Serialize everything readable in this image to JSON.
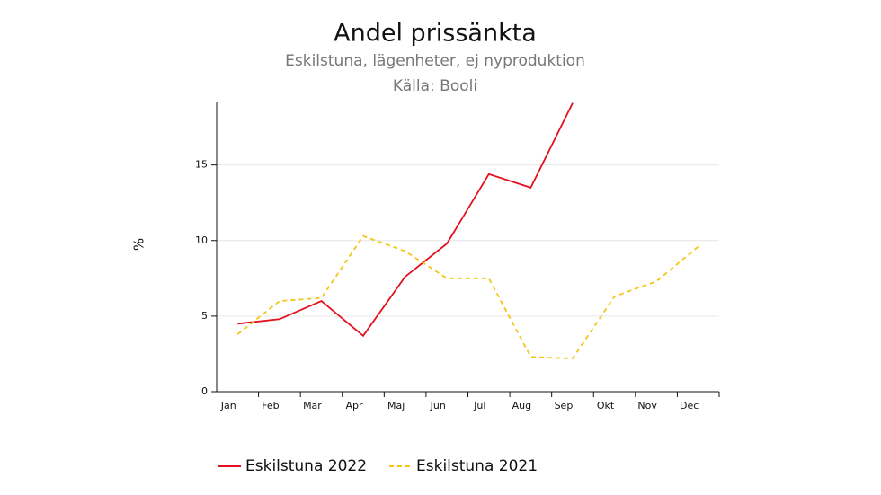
{
  "chart_data": {
    "type": "line",
    "title": "Andel prissänkta",
    "subtitle": "Eskilstuna, lägenheter, ej nyproduktion",
    "source": "Källa: Booli",
    "y_label": "%",
    "categories": [
      "Jan",
      "Feb",
      "Mar",
      "Apr",
      "Maj",
      "Jun",
      "Jul",
      "Aug",
      "Sep",
      "Okt",
      "Nov",
      "Dec"
    ],
    "series": [
      {
        "name": "Eskilstuna 2022",
        "color": "#e3101e",
        "dash": false,
        "values": [
          4.5,
          4.8,
          6.0,
          3.7,
          7.6,
          9.8,
          14.4,
          13.5,
          19.1,
          null,
          null,
          null
        ]
      },
      {
        "name": "Eskilstuna 2021",
        "color": "#f5c518",
        "dash": true,
        "values": [
          3.8,
          6.0,
          6.2,
          10.3,
          9.3,
          7.5,
          7.5,
          2.3,
          2.2,
          6.3,
          7.3,
          9.6
        ]
      }
    ],
    "ylim": [
      0,
      19.2
    ],
    "yticks": [
      0,
      5,
      10,
      15
    ],
    "grid": true
  }
}
